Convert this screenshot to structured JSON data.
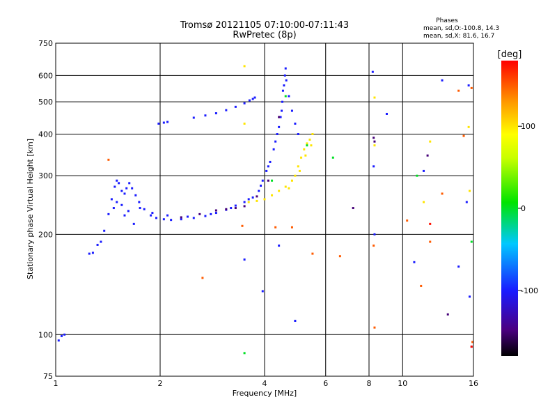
{
  "chart_data": {
    "type": "scatter",
    "title": "Tromsø 20121105 07:10:00-07:11:43",
    "subtitle": "RwPretec (8p)",
    "stats": {
      "heading": "Phases",
      "line_o": "mean, sd,O:-100.8, 14.3",
      "line_x": "mean, sd,X:  81.6, 16.7"
    },
    "xlabel": "Frequency [MHz]",
    "ylabel": "Stationary phase Virtual Height [km]",
    "xscale": "log",
    "yscale": "log",
    "xlim": [
      1,
      16
    ],
    "ylim": [
      75,
      750
    ],
    "xticks": [
      1,
      2,
      4,
      6,
      8,
      10,
      16
    ],
    "yticks": [
      75,
      100,
      200,
      300,
      400,
      500,
      600,
      750
    ],
    "grid": true,
    "colorbar": {
      "label": "[deg]",
      "range": [
        -180,
        180
      ],
      "ticks": [
        100,
        0,
        -100
      ]
    },
    "series": [
      {
        "phase": -100,
        "points": [
          [
            1.02,
            96
          ],
          [
            1.04,
            99
          ],
          [
            1.06,
            100
          ],
          [
            1.25,
            175
          ],
          [
            1.28,
            176
          ],
          [
            1.32,
            186
          ],
          [
            1.35,
            190
          ],
          [
            1.38,
            205
          ],
          [
            1.42,
            230
          ],
          [
            1.45,
            255
          ],
          [
            1.48,
            278
          ],
          [
            1.5,
            290
          ],
          [
            1.52,
            285
          ],
          [
            1.55,
            270
          ],
          [
            1.58,
            265
          ],
          [
            1.6,
            275
          ],
          [
            1.63,
            285
          ],
          [
            1.66,
            275
          ],
          [
            1.7,
            262
          ],
          [
            1.74,
            250
          ],
          [
            1.8,
            238
          ],
          [
            1.88,
            228
          ],
          [
            1.95,
            224
          ],
          [
            2.05,
            222
          ],
          [
            2.15,
            221
          ],
          [
            2.3,
            222
          ],
          [
            2.5,
            224
          ],
          [
            2.7,
            227
          ],
          [
            2.9,
            232
          ],
          [
            3.1,
            237
          ],
          [
            3.3,
            244
          ],
          [
            3.5,
            250
          ],
          [
            3.7,
            258
          ],
          [
            3.85,
            270
          ],
          [
            3.95,
            290
          ],
          [
            4.05,
            310
          ],
          [
            4.15,
            330
          ],
          [
            4.25,
            360
          ],
          [
            4.35,
            400
          ],
          [
            4.45,
            450
          ],
          [
            4.5,
            500
          ],
          [
            4.55,
            560
          ],
          [
            4.6,
            630
          ],
          [
            1.47,
            240
          ],
          [
            1.5,
            250
          ],
          [
            1.55,
            245
          ],
          [
            1.58,
            228
          ],
          [
            1.62,
            235
          ],
          [
            1.68,
            215
          ],
          [
            1.75,
            240
          ],
          [
            1.9,
            232
          ],
          [
            2.1,
            228
          ],
          [
            2.4,
            226
          ],
          [
            2.8,
            230
          ],
          [
            3.2,
            240
          ],
          [
            3.6,
            255
          ],
          [
            3.9,
            280
          ],
          [
            4.1,
            320
          ],
          [
            4.3,
            380
          ],
          [
            4.4,
            420
          ],
          [
            4.48,
            470
          ],
          [
            4.52,
            540
          ],
          [
            4.58,
            600
          ],
          [
            4.62,
            580
          ],
          [
            4.7,
            520
          ],
          [
            4.8,
            470
          ],
          [
            4.9,
            430
          ],
          [
            5.0,
            400
          ],
          [
            1.98,
            430
          ],
          [
            2.05,
            433
          ],
          [
            2.1,
            435
          ],
          [
            2.5,
            448
          ],
          [
            2.7,
            455
          ],
          [
            2.9,
            462
          ],
          [
            3.1,
            472
          ],
          [
            3.3,
            483
          ],
          [
            3.5,
            495
          ],
          [
            3.62,
            505
          ],
          [
            3.7,
            510
          ],
          [
            3.75,
            515
          ],
          [
            3.5,
            168
          ],
          [
            3.95,
            135
          ],
          [
            4.4,
            185
          ],
          [
            4.9,
            110
          ],
          [
            8.2,
            615
          ],
          [
            8.25,
            320
          ],
          [
            8.3,
            200
          ],
          [
            9.0,
            460
          ],
          [
            10.8,
            165
          ],
          [
            11.5,
            310
          ],
          [
            13,
            580
          ],
          [
            14.5,
            160
          ],
          [
            15.3,
            250
          ],
          [
            15.5,
            560
          ],
          [
            15.6,
            130
          ]
        ]
      },
      {
        "phase": -150,
        "points": [
          [
            2.3,
            225
          ],
          [
            2.6,
            230
          ],
          [
            2.9,
            236
          ],
          [
            3.1,
            238
          ],
          [
            3.3,
            240
          ],
          [
            3.5,
            243
          ],
          [
            3.8,
            260
          ],
          [
            4.1,
            290
          ],
          [
            4.4,
            450
          ],
          [
            7.2,
            240
          ],
          [
            8.25,
            390
          ],
          [
            8.3,
            380
          ],
          [
            11.8,
            345
          ],
          [
            13.5,
            115
          ],
          [
            15.8,
            92
          ]
        ]
      },
      {
        "phase": 100,
        "points": [
          [
            3.6,
            250
          ],
          [
            3.8,
            252
          ],
          [
            4.0,
            255
          ],
          [
            4.2,
            262
          ],
          [
            4.4,
            270
          ],
          [
            4.6,
            278
          ],
          [
            4.8,
            290
          ],
          [
            4.9,
            300
          ],
          [
            5.0,
            320
          ],
          [
            5.1,
            340
          ],
          [
            5.2,
            360
          ],
          [
            5.3,
            375
          ],
          [
            5.4,
            385
          ],
          [
            5.5,
            400
          ],
          [
            4.7,
            275
          ],
          [
            5.05,
            310
          ],
          [
            5.25,
            345
          ],
          [
            5.45,
            370
          ],
          [
            3.5,
            430
          ],
          [
            3.5,
            640
          ],
          [
            8.3,
            515
          ],
          [
            8.3,
            370
          ],
          [
            11.5,
            250
          ],
          [
            12,
            380
          ],
          [
            15.5,
            420
          ],
          [
            15.6,
            270
          ]
        ]
      },
      {
        "phase": 150,
        "points": [
          [
            1.42,
            335
          ],
          [
            2.65,
            148
          ],
          [
            3.45,
            212
          ],
          [
            4.3,
            210
          ],
          [
            4.8,
            210
          ],
          [
            5.5,
            175
          ],
          [
            6.6,
            172
          ],
          [
            8.25,
            185
          ],
          [
            8.3,
            105
          ],
          [
            11.3,
            140
          ],
          [
            12,
            190
          ],
          [
            13,
            265
          ],
          [
            14.5,
            540
          ],
          [
            15.0,
            395
          ],
          [
            15.8,
            550
          ],
          [
            15.9,
            95
          ],
          [
            10.3,
            220
          ]
        ]
      },
      {
        "phase": 0,
        "points": [
          [
            3.5,
            88
          ],
          [
            6.3,
            340
          ],
          [
            4.6,
            520
          ],
          [
            11.0,
            300
          ],
          [
            15.8,
            190
          ],
          [
            5.3,
            370
          ],
          [
            4.2,
            290
          ]
        ]
      },
      {
        "phase": 175,
        "points": [
          [
            12.0,
            215
          ],
          [
            15.8,
            92
          ]
        ]
      }
    ]
  }
}
